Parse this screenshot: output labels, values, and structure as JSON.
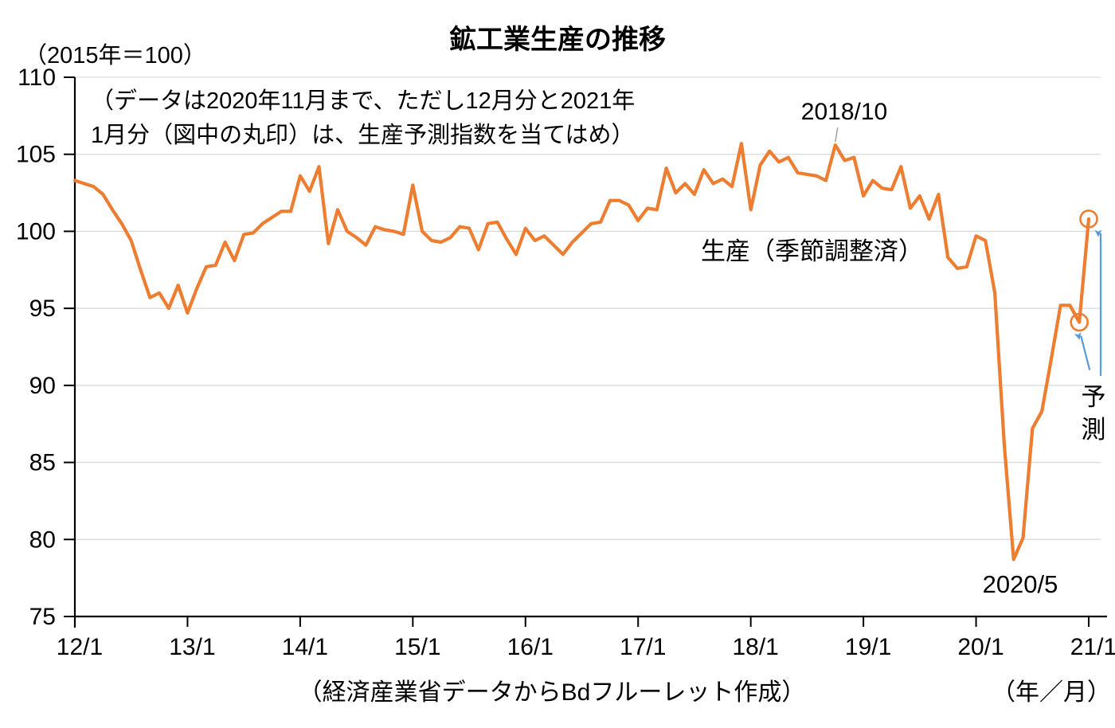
{
  "page": {
    "background": "#ffffff"
  },
  "header": {
    "title": "鉱工業生産の推移",
    "unit_label": "（2015年＝100）"
  },
  "note": {
    "line1": "（データは2020年11月まで、ただし12月分と2021年",
    "line2": "1月分（図中の丸印）は、生産予測指数を当てはめ）"
  },
  "annotations": {
    "series_label": "生産（季節調整済）",
    "peak_label": "2018/10",
    "trough_label": "2020/5",
    "forecast_label": "予測"
  },
  "footer": {
    "source": "（経済産業省データからBdフルーレット作成）",
    "axis_caption": "（年／月）"
  },
  "chart_data": {
    "type": "line",
    "title": "鉱工業生産の推移",
    "unit": "2015年＝100",
    "grid": true,
    "legend_position": "none",
    "ylim": [
      75,
      110
    ],
    "y_ticks": [
      75,
      80,
      85,
      90,
      95,
      100,
      105,
      110
    ],
    "x_tick_labels": [
      "12/1",
      "13/1",
      "14/1",
      "15/1",
      "16/1",
      "17/1",
      "18/1",
      "19/1",
      "20/1",
      "21/1"
    ],
    "x_months_per_tick": 12,
    "start_month": "2012/1",
    "end_month": "2021/1",
    "series": [
      {
        "name": "生産（季節調整済）",
        "color": "#ED7D31",
        "values": [
          103.3,
          103.1,
          102.9,
          102.4,
          101.4,
          100.5,
          99.4,
          97.5,
          95.7,
          96.0,
          95.0,
          96.5,
          94.7,
          96.3,
          97.7,
          97.8,
          99.3,
          98.1,
          99.8,
          99.9,
          100.5,
          100.9,
          101.3,
          101.3,
          103.6,
          102.6,
          104.2,
          99.2,
          101.4,
          100.0,
          99.6,
          99.1,
          100.3,
          100.1,
          100.0,
          99.8,
          103.0,
          100.0,
          99.4,
          99.3,
          99.6,
          100.3,
          100.2,
          98.8,
          100.5,
          100.6,
          99.5,
          98.5,
          100.2,
          99.4,
          99.7,
          99.1,
          98.5,
          99.3,
          99.9,
          100.5,
          100.6,
          102.0,
          102.0,
          101.7,
          100.7,
          101.5,
          101.4,
          104.1,
          102.5,
          103.1,
          102.4,
          104.0,
          103.1,
          103.4,
          102.9,
          105.7,
          101.4,
          104.3,
          105.2,
          104.5,
          104.8,
          103.8,
          103.7,
          103.6,
          103.3,
          105.6,
          104.6,
          104.8,
          102.3,
          103.3,
          102.8,
          102.7,
          104.2,
          101.5,
          102.3,
          100.8,
          102.4,
          98.3,
          97.6,
          97.7,
          99.7,
          99.4,
          96.0,
          86.2,
          78.7,
          80.1,
          87.2,
          88.3,
          91.7,
          95.2,
          95.2,
          94.1,
          100.8
        ]
      }
    ],
    "forecast_points": [
      {
        "month": "2020/12",
        "value": 94.1,
        "marker": "open-circle"
      },
      {
        "month": "2021/1",
        "value": 100.8,
        "marker": "open-circle"
      }
    ],
    "callouts": [
      {
        "label": "2018/10",
        "month": "2018/10",
        "value": 105.6
      },
      {
        "label": "2020/5",
        "month": "2020/5",
        "value": 78.7
      },
      {
        "label": "予測",
        "points_to": [
          "2020/12",
          "2021/1"
        ]
      }
    ],
    "colors": {
      "line": "#ED7D31",
      "forecast_circle": "#ED7D31",
      "arrow": "#5B9BD5",
      "gridline": "#D9D9D9",
      "axis": "#000000",
      "leader_line": "#A6A6A6"
    }
  }
}
